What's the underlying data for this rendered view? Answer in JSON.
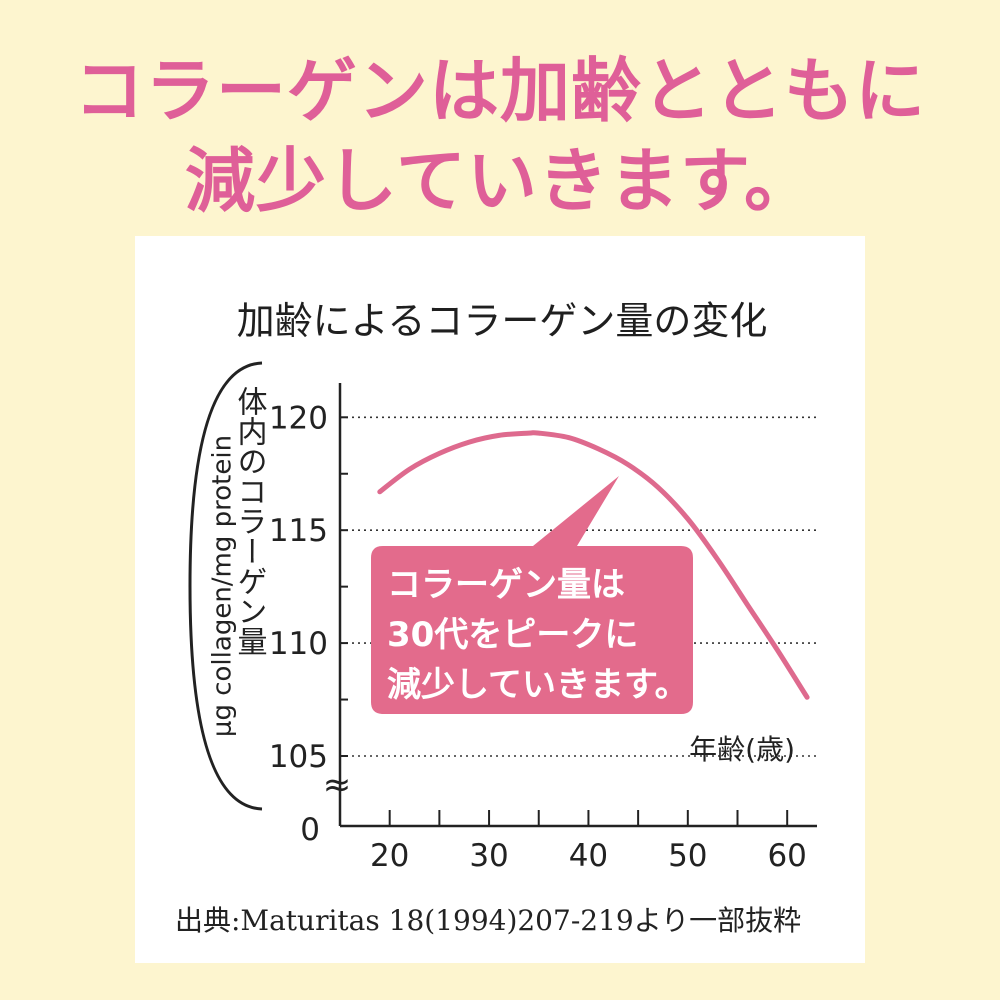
{
  "headline": {
    "line1": "コラーゲンは加齢とともに",
    "line2": "減少していきます。"
  },
  "colors": {
    "background": "#fdf5cf",
    "headline": "#df5f98",
    "curve": "#de6a8e",
    "callout": "#e36b8c"
  },
  "chart_data": {
    "type": "line",
    "title": "加齢によるコラーゲン量の変化",
    "ylabel_jp": "体内のコラーゲン量",
    "ylabel_en": "μg collagen/mg protein",
    "xlabel": "年齢(歳)",
    "x_ticks": [
      "20",
      "30",
      "40",
      "50",
      "60"
    ],
    "y_ticks": [
      "120",
      "115",
      "110",
      "105"
    ],
    "y_zero_label": "0",
    "y_break_symbol": "≈",
    "xlim": [
      15,
      63
    ],
    "ylim": [
      105,
      120.5
    ],
    "gridlines_at": [
      120,
      115,
      110,
      105
    ],
    "series": [
      {
        "x": [
          19,
          22,
          25,
          28,
          31,
          34,
          35,
          38,
          41,
          44,
          47,
          50,
          53,
          56,
          59,
          62
        ],
        "values": [
          116.7,
          117.7,
          118.4,
          118.9,
          119.2,
          119.3,
          119.3,
          119.1,
          118.6,
          117.9,
          116.9,
          115.5,
          113.7,
          111.7,
          109.7,
          107.6
        ]
      }
    ],
    "callout": {
      "lines": [
        "コラーゲン量は",
        "30代をピークに",
        "減少していきます。"
      ]
    },
    "source": "出典:Maturitas 18(1994)207-219より一部抜粋"
  }
}
